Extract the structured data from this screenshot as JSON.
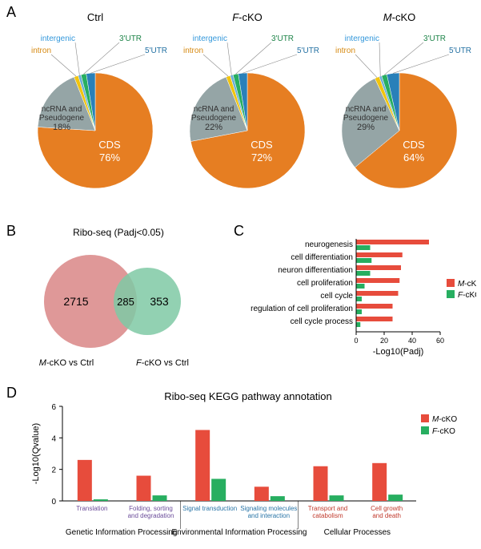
{
  "panelA": {
    "label": "A",
    "charts": [
      {
        "title": "Ctrl",
        "title_style": "normal",
        "slices": [
          {
            "label": "CDS",
            "pct": "76%",
            "value": 76,
            "color": "#e67e22"
          },
          {
            "label": "ncRNA and\nPseudogene",
            "pct": "18%",
            "value": 18,
            "color": "#95a5a6"
          },
          {
            "label": "intron",
            "value": 1.2,
            "color": "#f1c40f"
          },
          {
            "label": "intergenic",
            "value": 0.8,
            "color": "#6baed6"
          },
          {
            "label": "3'UTR",
            "value": 1.5,
            "color": "#27ae60"
          },
          {
            "label": "5'UTR",
            "value": 2.5,
            "color": "#2980b9"
          }
        ],
        "callouts": {
          "intron": {
            "color": "#e08e0b"
          },
          "intergenic": {
            "color": "#3498db"
          },
          "3utr": {
            "color": "#27ae60"
          },
          "5utr": {
            "color": "#2471a3"
          }
        }
      },
      {
        "title": "F-cKO",
        "title_style": "italic-first",
        "slices": [
          {
            "label": "CDS",
            "pct": "72%",
            "value": 72,
            "color": "#e67e22"
          },
          {
            "label": "ncRNA and\nPseudogene",
            "pct": "22%",
            "value": 22,
            "color": "#95a5a6"
          },
          {
            "label": "intron",
            "value": 1.2,
            "color": "#f1c40f"
          },
          {
            "label": "intergenic",
            "value": 0.8,
            "color": "#6baed6"
          },
          {
            "label": "3'UTR",
            "value": 1.5,
            "color": "#27ae60"
          },
          {
            "label": "5'UTR",
            "value": 2.5,
            "color": "#2980b9"
          }
        ]
      },
      {
        "title": "M-cKO",
        "title_style": "italic-first",
        "slices": [
          {
            "label": "CDS",
            "pct": "64%",
            "value": 64,
            "color": "#e67e22"
          },
          {
            "label": "ncRNA and\nPseudogene",
            "pct": "29%",
            "value": 29,
            "color": "#95a5a6"
          },
          {
            "label": "intron",
            "value": 1.3,
            "color": "#f1c40f"
          },
          {
            "label": "intergenic",
            "value": 0.7,
            "color": "#6baed6"
          },
          {
            "label": "3'UTR",
            "value": 1.5,
            "color": "#27ae60"
          },
          {
            "label": "5'UTR",
            "value": 3.5,
            "color": "#2980b9"
          }
        ]
      }
    ]
  },
  "panelB": {
    "label": "B",
    "title": "Ribo-seq (Padj<0.05)",
    "venn": {
      "left_value": "2715",
      "overlap_value": "285",
      "right_value": "353",
      "left_color": "#d98686",
      "right_color": "#7fc9a4",
      "left_label_prefix": "M",
      "left_label_rest": "-cKO vs Ctrl",
      "right_label_prefix": "F",
      "right_label_rest": "-cKO vs Ctrl"
    }
  },
  "panelC": {
    "label": "C",
    "categories": [
      "neurogenesis",
      "cell differentiation",
      "neuron differentiation",
      "cell proliferation",
      "cell cycle",
      "regulation of cell proliferation",
      "cell cycle process"
    ],
    "series": [
      {
        "name": "M-cKO",
        "name_prefix": "M",
        "name_rest": "-cKO",
        "color": "#e74c3c",
        "values": [
          52,
          33,
          32,
          31,
          30,
          26,
          26
        ]
      },
      {
        "name": "F-cKO",
        "name_prefix": "F",
        "name_rest": "-cKO",
        "color": "#27ae60",
        "values": [
          10,
          11,
          10,
          6,
          4,
          4,
          3
        ]
      }
    ],
    "xlabel": "-Log10(Padj)",
    "xlim": [
      0,
      60
    ],
    "xticks": [
      0,
      20,
      40,
      60
    ]
  },
  "panelD": {
    "label": "D",
    "title": "Ribo-seq KEGG pathway annotation",
    "ylabel": "-Log10(Qvalue)",
    "ylim": [
      0,
      6
    ],
    "yticks": [
      0,
      2,
      4,
      6
    ],
    "groups": [
      {
        "label": "Genetic Information Processing",
        "bars": [
          {
            "x": "Translation",
            "xcolor": "#6b4c9a"
          },
          {
            "x": "Folding, sorting\nand degradation",
            "xcolor": "#6b4c9a"
          }
        ]
      },
      {
        "label": "Environmental Information Processing",
        "bars": [
          {
            "x": "Signal transduction",
            "xcolor": "#2874a6"
          },
          {
            "x": "Signaling molecules\nand interaction",
            "xcolor": "#2874a6"
          }
        ]
      },
      {
        "label": "Cellular Processes",
        "bars": [
          {
            "x": "Transport and\ncatabolism",
            "xcolor": "#c0392b"
          },
          {
            "x": "Cell growth\nand death",
            "xcolor": "#c0392b"
          }
        ]
      }
    ],
    "series": [
      {
        "name_prefix": "M",
        "name_rest": "-cKO",
        "color": "#e74c3c",
        "values": [
          2.6,
          1.6,
          4.5,
          0.9,
          2.2,
          2.4
        ]
      },
      {
        "name_prefix": "F",
        "name_rest": "-cKO",
        "color": "#27ae60",
        "values": [
          0.1,
          0.35,
          1.4,
          0.3,
          0.35,
          0.4
        ]
      }
    ]
  }
}
